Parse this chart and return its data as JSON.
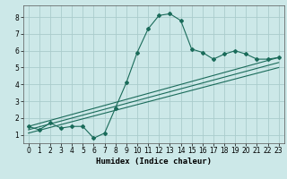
{
  "title": "",
  "xlabel": "Humidex (Indice chaleur)",
  "ylabel": "",
  "xlim": [
    -0.5,
    23.5
  ],
  "ylim": [
    0.5,
    8.7
  ],
  "xticks": [
    0,
    1,
    2,
    3,
    4,
    5,
    6,
    7,
    8,
    9,
    10,
    11,
    12,
    13,
    14,
    15,
    16,
    17,
    18,
    19,
    20,
    21,
    22,
    23
  ],
  "yticks": [
    1,
    2,
    3,
    4,
    5,
    6,
    7,
    8
  ],
  "bg_color": "#cce8e8",
  "grid_color": "#aacccc",
  "line_color": "#1a6b5a",
  "line1_x": [
    0,
    1,
    2,
    3,
    4,
    5,
    6,
    7,
    8,
    9,
    10,
    11,
    12,
    13,
    14,
    15,
    16,
    17,
    18,
    19,
    20,
    21,
    22,
    23
  ],
  "line1_y": [
    1.5,
    1.3,
    1.7,
    1.4,
    1.5,
    1.5,
    0.8,
    1.1,
    2.6,
    4.1,
    5.9,
    7.3,
    8.1,
    8.2,
    7.8,
    6.1,
    5.9,
    5.5,
    5.8,
    6.0,
    5.8,
    5.5,
    5.5,
    5.6
  ],
  "line2_x": [
    0,
    23
  ],
  "line2_y": [
    1.5,
    5.6
  ],
  "line3_x": [
    0,
    23
  ],
  "line3_y": [
    1.3,
    5.3
  ],
  "line4_x": [
    0,
    23
  ],
  "line4_y": [
    1.1,
    5.0
  ]
}
